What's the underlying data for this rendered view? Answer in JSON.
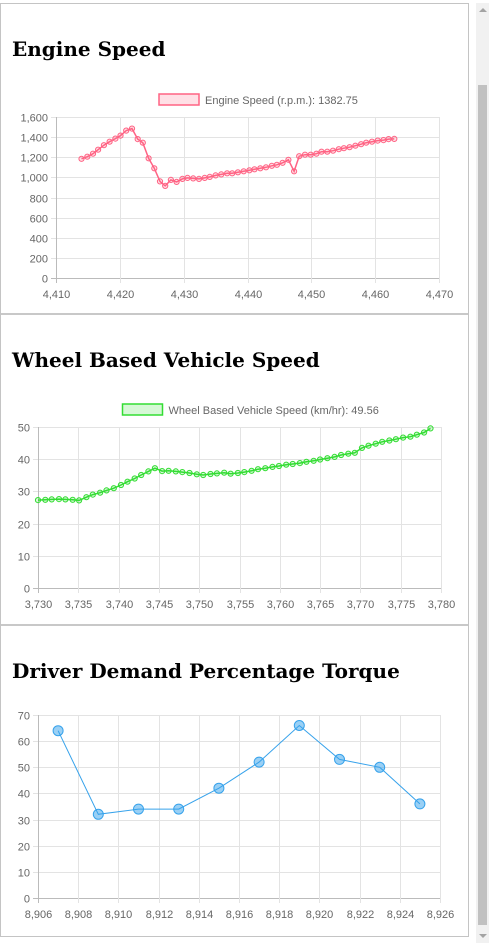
{
  "panels": [
    {
      "title": "Engine Speed"
    },
    {
      "title": "Wheel Based Vehicle Speed"
    },
    {
      "title": "Driver Demand Percentage Torque"
    }
  ],
  "colors": {
    "engine": "#ff6384",
    "vehicle": "#33dd33",
    "torque": "#36a2eb"
  },
  "chart_data": [
    {
      "type": "line",
      "title": "Engine Speed",
      "legend": "Engine Speed (r.p.m.): 1382.75",
      "xlim": [
        4410,
        4470
      ],
      "ylim": [
        0,
        1600
      ],
      "xticks": [
        4410,
        4420,
        4430,
        4440,
        4450,
        4460,
        4470
      ],
      "yticks": [
        0,
        200,
        400,
        600,
        800,
        1000,
        1200,
        1400,
        1600
      ],
      "xtick_labels": [
        "4,410",
        "4,420",
        "4,430",
        "4,440",
        "4,450",
        "4,460",
        "4,470"
      ],
      "ytick_labels": [
        "0",
        "200",
        "400",
        "600",
        "800",
        "1,000",
        "1,200",
        "1,400",
        "1,600"
      ],
      "grid": true,
      "series": [
        {
          "name": "Engine Speed (r.p.m.)",
          "x": [
            4414.0,
            4414.9,
            4415.8,
            4416.6,
            4417.5,
            4418.4,
            4419.3,
            4420.1,
            4421.0,
            4421.9,
            4422.8,
            4423.6,
            4424.5,
            4425.4,
            4426.3,
            4427.1,
            4428.0,
            4428.9,
            4429.8,
            4430.6,
            4431.5,
            4432.4,
            4433.3,
            4434.1,
            4435.0,
            4435.9,
            4436.8,
            4437.6,
            4438.5,
            4439.4,
            4440.3,
            4441.1,
            4442.0,
            4442.9,
            4443.8,
            4444.6,
            4445.5,
            4446.4,
            4447.3,
            4448.1,
            4449.0,
            4449.9,
            4450.8,
            4451.6,
            4452.5,
            4453.4,
            4454.3,
            4455.1,
            4456.0,
            4456.9,
            4457.8,
            4458.6,
            4459.5,
            4460.4,
            4461.3,
            4462.1,
            4463.0
          ],
          "y": [
            1185,
            1205,
            1235,
            1275,
            1320,
            1355,
            1385,
            1415,
            1465,
            1485,
            1380,
            1345,
            1190,
            1090,
            960,
            915,
            975,
            955,
            985,
            995,
            990,
            985,
            995,
            1005,
            1020,
            1030,
            1040,
            1040,
            1050,
            1060,
            1070,
            1080,
            1090,
            1100,
            1115,
            1125,
            1145,
            1175,
            1060,
            1210,
            1225,
            1225,
            1235,
            1255,
            1255,
            1265,
            1280,
            1290,
            1300,
            1315,
            1330,
            1345,
            1355,
            1365,
            1370,
            1380,
            1382.75
          ]
        }
      ]
    },
    {
      "type": "line",
      "title": "Wheel Based Vehicle Speed",
      "legend": "Wheel Based Vehicle Speed (km/hr): 49.56",
      "xlim": [
        3730,
        3780
      ],
      "ylim": [
        0,
        50
      ],
      "xticks": [
        3730,
        3735,
        3740,
        3745,
        3750,
        3755,
        3760,
        3765,
        3770,
        3775,
        3780
      ],
      "yticks": [
        0,
        10,
        20,
        30,
        40,
        50
      ],
      "xtick_labels": [
        "3,730",
        "3,735",
        "3,740",
        "3,745",
        "3,750",
        "3,755",
        "3,760",
        "3,765",
        "3,770",
        "3,775",
        "3,780"
      ],
      "ytick_labels": [
        "0",
        "10",
        "20",
        "30",
        "40",
        "50"
      ],
      "grid": true,
      "series": [
        {
          "name": "Wheel Based Vehicle Speed (km/hr)",
          "x": [
            3730.0,
            3730.9,
            3731.7,
            3732.6,
            3733.4,
            3734.3,
            3735.1,
            3736.0,
            3736.8,
            3737.7,
            3738.5,
            3739.4,
            3740.3,
            3741.1,
            3742.0,
            3742.8,
            3743.7,
            3744.5,
            3745.4,
            3746.2,
            3747.1,
            3747.9,
            3748.8,
            3749.7,
            3750.5,
            3751.4,
            3752.2,
            3753.1,
            3753.9,
            3754.8,
            3755.6,
            3756.5,
            3757.3,
            3758.2,
            3759.1,
            3759.9,
            3760.8,
            3761.6,
            3762.5,
            3763.3,
            3764.2,
            3765.0,
            3765.9,
            3766.8,
            3767.6,
            3768.5,
            3769.3,
            3770.2,
            3771.0,
            3771.9,
            3772.7,
            3773.6,
            3774.4,
            3775.3,
            3776.2,
            3777.0,
            3777.9,
            3778.7
          ],
          "y": [
            27.3,
            27.4,
            27.5,
            27.6,
            27.5,
            27.4,
            27.2,
            28.2,
            29.0,
            29.6,
            30.3,
            31.0,
            32.0,
            33.0,
            34.0,
            35.1,
            36.2,
            37.2,
            36.3,
            36.4,
            36.2,
            36.0,
            35.7,
            35.3,
            35.1,
            35.4,
            35.6,
            35.8,
            35.5,
            35.7,
            36.0,
            36.4,
            36.9,
            37.2,
            37.6,
            37.9,
            38.3,
            38.5,
            38.8,
            39.2,
            39.5,
            39.9,
            40.3,
            40.7,
            41.3,
            41.7,
            42.0,
            43.5,
            44.2,
            44.8,
            45.4,
            45.8,
            46.2,
            46.7,
            47.0,
            47.6,
            48.3,
            49.56
          ]
        }
      ]
    },
    {
      "type": "line",
      "title": "Driver Demand Percentage Torque",
      "legend": "",
      "xlim": [
        8906,
        8926
      ],
      "ylim": [
        0,
        70
      ],
      "xticks": [
        8906,
        8908,
        8910,
        8912,
        8914,
        8916,
        8918,
        8920,
        8922,
        8924,
        8926
      ],
      "yticks": [
        0,
        10,
        20,
        30,
        40,
        50,
        60,
        70
      ],
      "xtick_labels": [
        "8,906",
        "8,908",
        "8,910",
        "8,912",
        "8,914",
        "8,916",
        "8,918",
        "8,920",
        "8,922",
        "8,924",
        "8,926"
      ],
      "ytick_labels": [
        "0",
        "10",
        "20",
        "30",
        "40",
        "50",
        "60",
        "70"
      ],
      "grid": true,
      "series": [
        {
          "name": "",
          "x": [
            8907,
            8909,
            8911,
            8913,
            8915,
            8917,
            8919,
            8921,
            8923,
            8925
          ],
          "y": [
            64,
            32,
            34,
            34,
            42,
            52,
            66,
            53,
            50,
            36
          ]
        }
      ]
    }
  ]
}
